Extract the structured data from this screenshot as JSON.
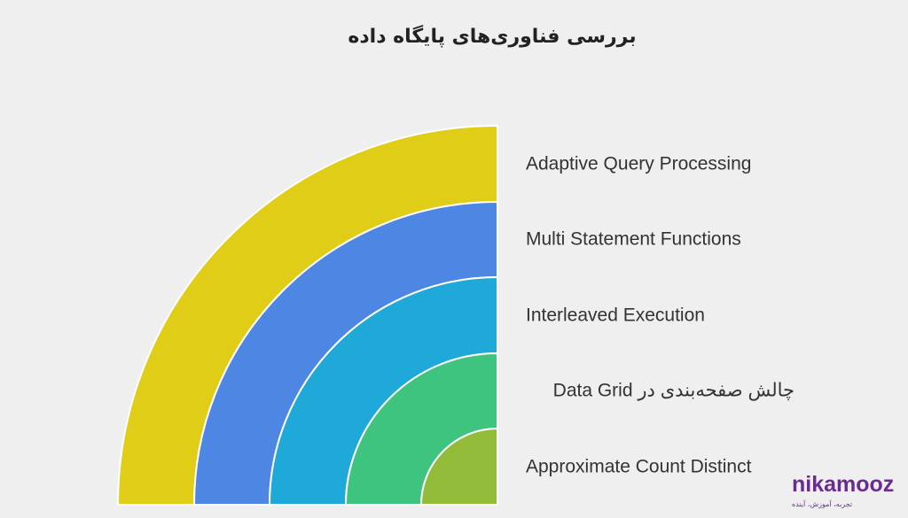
{
  "title": "بررسی فناوری‌های پایگاه داده",
  "items": [
    {
      "label": "Adaptive Query Processing"
    },
    {
      "label": "Multi Statement Functions"
    },
    {
      "label": "Interleaved Execution"
    },
    {
      "label": "چالش صفحه‌بندی در Data Grid"
    },
    {
      "label": "Approximate Count Distinct"
    }
  ],
  "logo": {
    "name": "nikamooz",
    "tagline": "تجربه، آموزش، آینده"
  }
}
